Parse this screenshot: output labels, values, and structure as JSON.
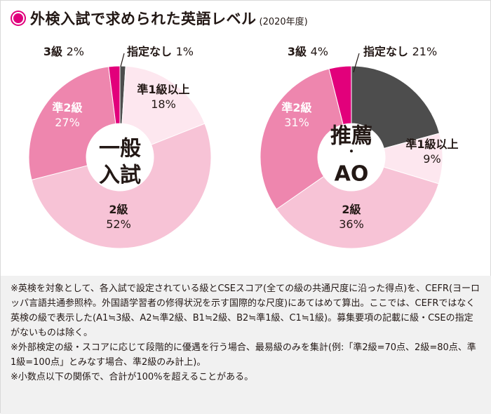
{
  "title": "外検入試で求められた英語レベル",
  "title_note": "(2020年度)",
  "chart_data": [
    {
      "type": "pie",
      "variant": "donut",
      "center_label": [
        "一般",
        "入試"
      ],
      "slices": [
        {
          "label": "指定なし",
          "value": 1,
          "value_text": "1%",
          "color": "#4d4d4d"
        },
        {
          "label": "準1級以上",
          "value": 18,
          "value_text": "18%",
          "color": "#fde7ef"
        },
        {
          "label": "2級",
          "value": 52,
          "value_text": "52%",
          "color": "#f7c3d6"
        },
        {
          "label": "準2級",
          "value": 27,
          "value_text": "27%",
          "color": "#ee86ae"
        },
        {
          "label": "3級",
          "value": 2,
          "value_text": "2%",
          "color": "#e2007b"
        }
      ]
    },
    {
      "type": "pie",
      "variant": "donut",
      "center_label": [
        "推薦",
        "・",
        "AO"
      ],
      "slices": [
        {
          "label": "指定なし",
          "value": 21,
          "value_text": "21%",
          "color": "#4d4d4d"
        },
        {
          "label": "準1級以上",
          "value": 9,
          "value_text": "9%",
          "color": "#fde7ef"
        },
        {
          "label": "2級",
          "value": 36,
          "value_text": "36%",
          "color": "#f7c3d6"
        },
        {
          "label": "準2級",
          "value": 31,
          "value_text": "31%",
          "color": "#ee86ae"
        },
        {
          "label": "3級",
          "value": 4,
          "value_text": "4%",
          "color": "#e2007b"
        }
      ]
    }
  ],
  "notes": [
    "※英検を対象として、各入試で設定されている級とCSEスコア(全ての級の共通尺度に沿った得点)を、CEFR(ヨーロッパ言語共通参照枠。外国語学習者の修得状況を示す国際的な尺度)にあてはめて算出。ここでは、CEFRではなく英検の級で表示した(A1≒3級、A2≒準2級、B1≒2級、B2≒準1級、C1≒1級)。募集要項の記載に級・CSEの指定がないものは除く。",
    "※外部検定の級・スコアに応じて段階的に優遇を行う場合、最易級のみを集計(例:「準2級=70点、2級=80点、準1級=100点」とみなす場合、準2級のみ計上)。",
    "※小数点以下の関係で、合計が100%を超えることがある。"
  ]
}
